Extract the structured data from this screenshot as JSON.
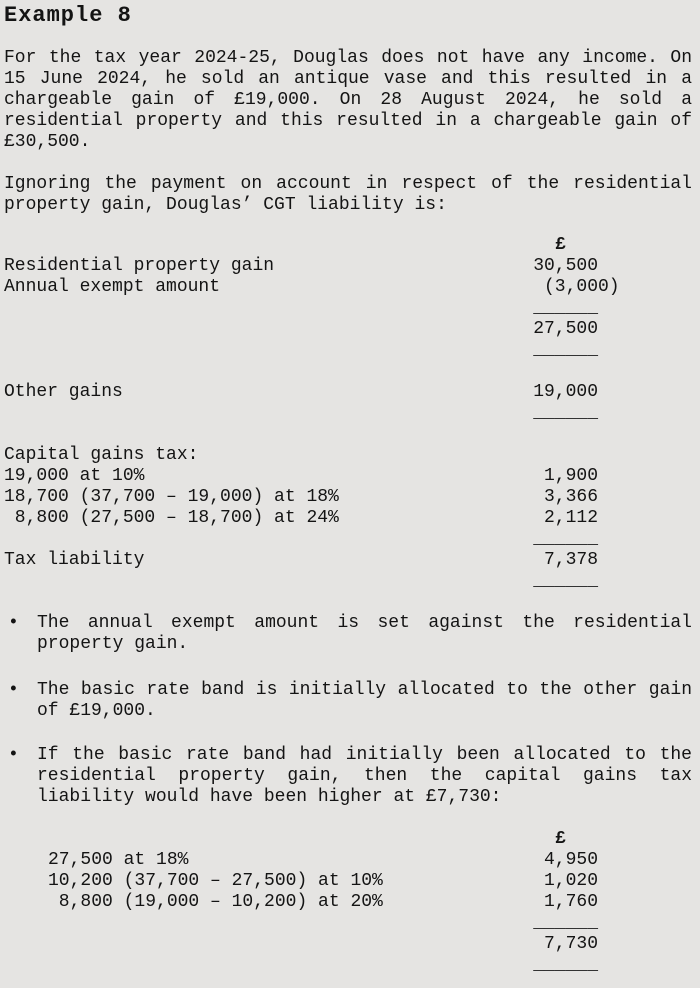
{
  "page": {
    "title": "Example 8"
  },
  "intro": {
    "lines": [
      "For the tax year 2024-25, Douglas does not have any income. On",
      "15 June 2024, he sold an antique vase and this resulted in a",
      "chargeable gain of £19,000. On 28 August 2024, he sold a",
      "residential property and this resulted in a chargeable gain of",
      "£30,500."
    ]
  },
  "liability_intro": {
    "lines": [
      "Ignoring the payment on account in respect of the residential",
      "property gain, Douglas’ CGT liability is:"
    ]
  },
  "statement": {
    "currency_header": "£",
    "rows": [
      {
        "label": "Residential property gain",
        "amount": "30,500"
      },
      {
        "label": "Annual exempt amount",
        "amount": "(3,000)"
      },
      {
        "rule": "______"
      },
      {
        "label": "",
        "amount": "27,500"
      },
      {
        "rule": "______"
      },
      {
        "label": "Other gains",
        "amount": "19,000"
      },
      {
        "rule": "______"
      },
      {
        "label": "Capital gains tax:",
        "amount": ""
      },
      {
        "label": "19,000 at 10%",
        "amount": "1,900"
      },
      {
        "label": "18,700 (37,700 – 19,000) at 18%",
        "amount": "3,366"
      },
      {
        "label": " 8,800 (27,500 – 18,700) at 24%",
        "amount": "2,112"
      },
      {
        "rule": "______"
      },
      {
        "label": "Tax liability",
        "amount": "7,378"
      },
      {
        "rule": "______"
      }
    ]
  },
  "notes": {
    "marker": "•",
    "items": [
      {
        "lines": [
          "The annual exempt amount is set against the residential",
          "property gain."
        ]
      },
      {
        "lines": [
          "The basic rate band is initially allocated to the other gain",
          "of £19,000."
        ]
      },
      {
        "lines": [
          "If the basic rate band had initially been allocated to the",
          "residential property gain, then the capital gains tax",
          "liability would have been higher at £7,730:"
        ]
      }
    ]
  },
  "alt_statement": {
    "currency_header": "£",
    "rows": [
      {
        "label": "27,500 at 18%",
        "amount": "4,950"
      },
      {
        "label": "10,200 (37,700 – 27,500) at 10%",
        "amount": "1,020"
      },
      {
        "label": " 8,800 (19,000 – 10,200) at 20%",
        "amount": "1,760"
      },
      {
        "rule": "______"
      },
      {
        "label": "",
        "amount": "7,730"
      },
      {
        "rule": "______"
      }
    ]
  },
  "colors": {
    "page_bg": "#e5e4e2",
    "text": "#141414"
  }
}
